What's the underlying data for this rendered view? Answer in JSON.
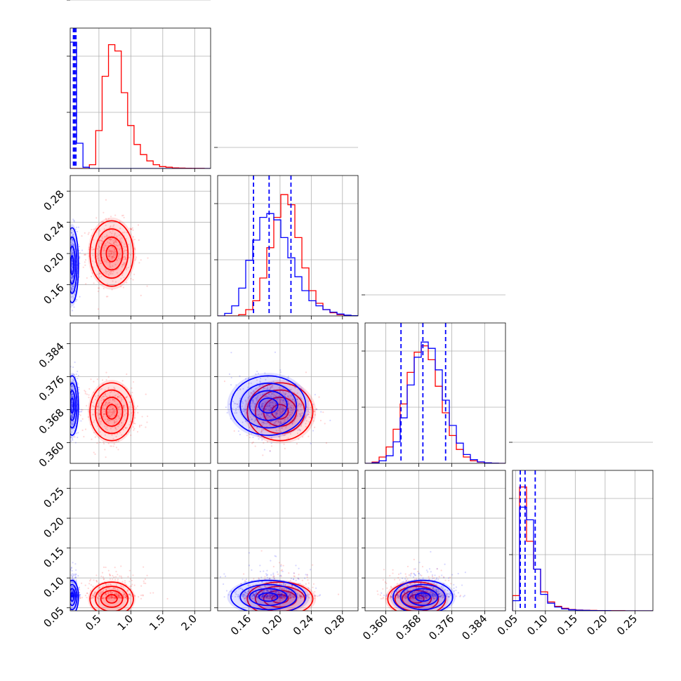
{
  "chart_data": {
    "type": "corner",
    "title": "",
    "parameters": [
      {
        "range": [
          0.05,
          2.25
        ],
        "ticks": [
          0.5,
          1.0,
          1.5,
          2.0
        ],
        "tick_labels": [
          "0.5",
          "1.0",
          "1.5",
          "2.0"
        ]
      },
      {
        "range": [
          0.12,
          0.3
        ],
        "ticks": [
          0.16,
          0.2,
          0.24,
          0.28
        ],
        "tick_labels": [
          "0.16",
          "0.20",
          "0.24",
          "0.28"
        ]
      },
      {
        "range": [
          0.355,
          0.389
        ],
        "ticks": [
          0.36,
          0.368,
          0.376,
          0.384
        ],
        "tick_labels": [
          "0.360",
          "0.368",
          "0.376",
          "0.384"
        ]
      },
      {
        "range": [
          0.045,
          0.28
        ],
        "ticks": [
          0.05,
          0.1,
          0.15,
          0.2,
          0.25
        ],
        "tick_labels": [
          "0.05",
          "0.10",
          "0.15",
          "0.20",
          "0.25"
        ]
      }
    ],
    "series": [
      {
        "color": "#ff0000",
        "histograms": [
          {
            "bins": [
              0.05,
              0.15,
              0.25,
              0.35,
              0.45,
              0.55,
              0.65,
              0.75,
              0.85,
              0.95,
              1.05,
              1.15,
              1.25,
              1.35,
              1.45,
              1.55,
              1.65,
              1.75,
              1.85,
              1.95,
              2.05,
              2.15,
              2.25
            ],
            "counts": [
              0,
              0,
              0,
              0.03,
              0.3,
              0.73,
              0.98,
              0.93,
              0.6,
              0.34,
              0.19,
              0.11,
              0.06,
              0.03,
              0.015,
              0.01,
              0.005,
              0.003,
              0.002,
              0.001,
              0.001,
              0
            ]
          },
          {
            "bins": [
              0.12,
              0.129,
              0.138,
              0.147,
              0.156,
              0.165,
              0.174,
              0.183,
              0.192,
              0.201,
              0.21,
              0.219,
              0.228,
              0.237,
              0.246,
              0.255,
              0.264,
              0.273,
              0.282,
              0.291,
              0.3
            ],
            "counts": [
              0,
              0,
              0,
              0.01,
              0.05,
              0.12,
              0.3,
              0.54,
              0.78,
              0.96,
              0.88,
              0.62,
              0.38,
              0.2,
              0.1,
              0.05,
              0.025,
              0.01,
              0.004,
              0.001
            ]
          },
          {
            "bins": [
              0.355,
              0.3567,
              0.3584,
              0.3601,
              0.3618,
              0.3635,
              0.3652,
              0.3669,
              0.3686,
              0.3703,
              0.372,
              0.3737,
              0.3754,
              0.3771,
              0.3788,
              0.3805,
              0.3822,
              0.3839,
              0.3856,
              0.3873,
              0.389
            ],
            "counts": [
              0,
              0.01,
              0.05,
              0.13,
              0.27,
              0.47,
              0.72,
              0.88,
              0.93,
              0.82,
              0.61,
              0.4,
              0.22,
              0.11,
              0.05,
              0.02,
              0.01,
              0.004,
              0.001,
              0
            ]
          },
          {
            "bins": [
              0.045,
              0.05675,
              0.0685,
              0.08025,
              0.092,
              0.10375,
              0.1155,
              0.12725,
              0.139,
              0.15075,
              0.1625,
              0.17425,
              0.186,
              0.19775,
              0.2095,
              0.22125,
              0.233,
              0.24475,
              0.2565,
              0.26825,
              0.28
            ],
            "counts": [
              0.12,
              0.98,
              0.55,
              0.33,
              0.15,
              0.07,
              0.035,
              0.02,
              0.01,
              0.006,
              0.004,
              0.003,
              0.002,
              0.001,
              0.001,
              0.001,
              0,
              0,
              0,
              0
            ]
          }
        ],
        "peaks": [
          [
            0.7,
            0.2,
            0.3675,
            0.065
          ]
        ],
        "spreads": [
          0.17,
          0.021,
          0.0035,
          0.014
        ]
      },
      {
        "color": "#0000ff",
        "histograms": [
          {
            "bins": [
              0.05,
              0.15,
              0.25,
              0.35,
              0.45,
              0.55,
              0.65,
              0.75,
              0.85,
              0.95,
              1.05,
              1.15,
              1.25,
              1.35,
              1.45,
              1.55,
              1.65,
              1.75,
              1.85,
              1.95,
              2.05,
              2.15,
              2.25
            ],
            "counts": [
              1.0,
              0.2,
              0.01,
              0,
              0,
              0,
              0,
              0,
              0,
              0,
              0,
              0,
              0,
              0,
              0,
              0,
              0,
              0,
              0,
              0,
              0,
              0
            ]
          },
          {
            "bins": [
              0.12,
              0.129,
              0.138,
              0.147,
              0.156,
              0.165,
              0.174,
              0.183,
              0.192,
              0.201,
              0.21,
              0.219,
              0.228,
              0.237,
              0.246,
              0.255,
              0.264,
              0.273,
              0.282,
              0.291,
              0.3
            ],
            "counts": [
              0,
              0.02,
              0.08,
              0.22,
              0.44,
              0.6,
              0.78,
              0.81,
              0.76,
              0.62,
              0.46,
              0.31,
              0.2,
              0.12,
              0.08,
              0.05,
              0.03,
              0.015,
              0.006,
              0.002
            ]
          },
          {
            "bins": [
              0.355,
              0.3567,
              0.3584,
              0.3601,
              0.3618,
              0.3635,
              0.3652,
              0.3669,
              0.3686,
              0.3703,
              0.372,
              0.3737,
              0.3754,
              0.3771,
              0.3788,
              0.3805,
              0.3822,
              0.3839,
              0.3856,
              0.3873,
              0.389
            ],
            "counts": [
              0,
              0.005,
              0.02,
              0.06,
              0.17,
              0.36,
              0.62,
              0.84,
              0.96,
              0.91,
              0.74,
              0.5,
              0.3,
              0.16,
              0.07,
              0.03,
              0.012,
              0.004,
              0.001,
              0
            ]
          },
          {
            "bins": [
              0.045,
              0.05675,
              0.0685,
              0.08025,
              0.092,
              0.10375,
              0.1155,
              0.12725,
              0.139,
              0.15075,
              0.1625,
              0.17425,
              0.186,
              0.19775,
              0.2095,
              0.22125,
              0.233,
              0.24475,
              0.2565,
              0.26825,
              0.28
            ],
            "counts": [
              0.08,
              0.82,
              0.72,
              0.33,
              0.13,
              0.06,
              0.03,
              0.015,
              0.008,
              0.005,
              0.003,
              0.002,
              0.001,
              0.001,
              0,
              0,
              0,
              0,
              0,
              0
            ]
          }
        ],
        "peaks": [
          [
            0.08,
            0.185,
            0.369,
            0.068
          ]
        ],
        "spreads": [
          0.05,
          0.024,
          0.0036,
          0.014
        ]
      }
    ],
    "quantile_lines": {
      "color": "#0000ff",
      "values": [
        [
          0.1,
          0.12,
          0.14
        ],
        [
          0.166,
          0.186,
          0.214
        ],
        [
          0.3637,
          0.369,
          0.3745
        ],
        [
          0.058,
          0.066,
          0.083
        ]
      ]
    },
    "grid": true
  }
}
